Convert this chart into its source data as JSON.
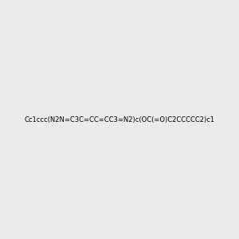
{
  "smiles": "Cc1ccc(N2N=C3C=CC=CC3=N2)c(OC(=O)C2CCCCC2)c1",
  "title": "",
  "bg_color": "#ebebeb",
  "figsize": [
    3.0,
    3.0
  ],
  "dpi": 100
}
